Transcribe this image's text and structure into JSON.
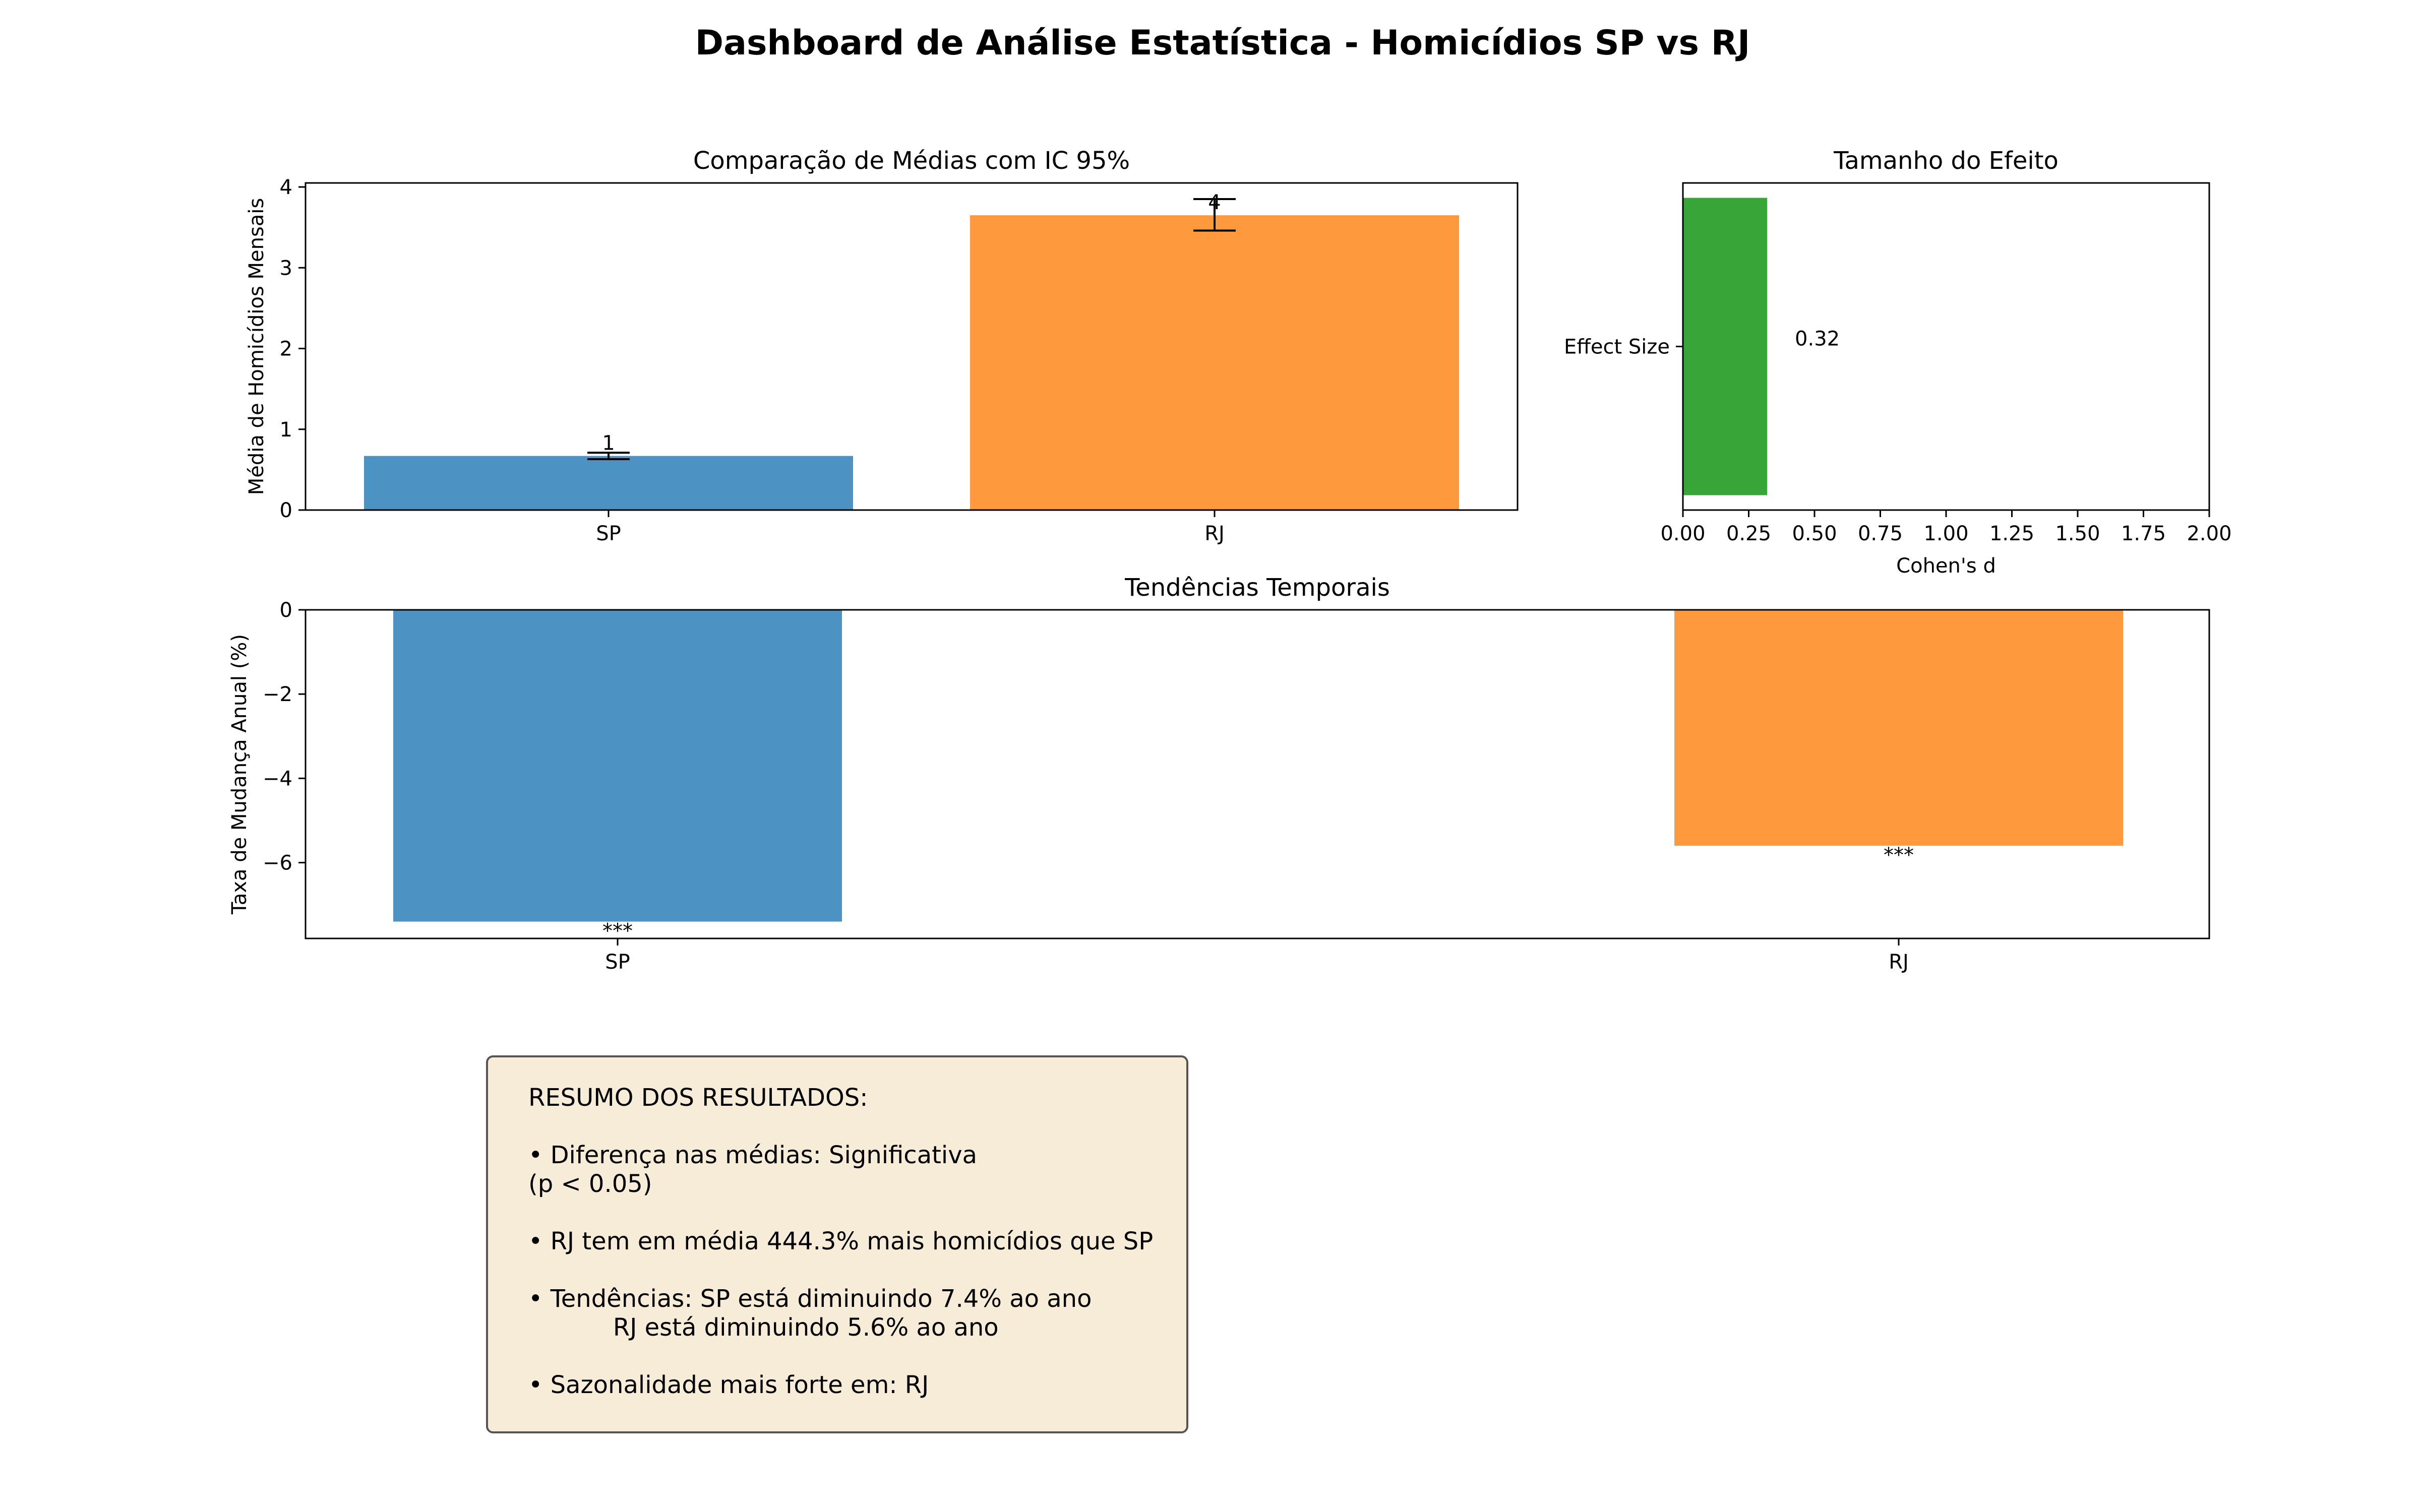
{
  "dashboard": {
    "title": "Dashboard de Análise Estatística - Homicídios SP vs RJ"
  },
  "chart_data": [
    {
      "type": "bar",
      "title": "Comparação de Médias com IC 95%",
      "xlabel": "",
      "ylabel": "Média de Homicídios Mensais",
      "categories": [
        "SP",
        "RJ"
      ],
      "values": [
        0.67,
        3.65
      ],
      "ci_low": [
        0.63,
        3.46
      ],
      "ci_high": [
        0.71,
        3.85
      ],
      "data_labels": [
        "1",
        "4"
      ],
      "colors": [
        "#1f77b4",
        "#ff7f0e"
      ],
      "ylim": [
        0,
        4.05
      ],
      "yticks": [
        0,
        1,
        2,
        3,
        4
      ],
      "grid": false
    },
    {
      "type": "bar",
      "orientation": "horizontal",
      "title": "Tamanho do Efeito",
      "xlabel": "Cohen's d",
      "ylabel": "",
      "categories": [
        "Effect Size"
      ],
      "values": [
        0.32
      ],
      "data_labels": [
        "0.32"
      ],
      "colors": [
        "#2ca02c"
      ],
      "xlim": [
        0,
        2.0
      ],
      "xticks": [
        "0.00",
        "0.25",
        "0.50",
        "0.75",
        "1.00",
        "1.25",
        "1.50",
        "1.75",
        "2.00"
      ],
      "grid": false
    },
    {
      "type": "bar",
      "title": "Tendências Temporais",
      "xlabel": "",
      "ylabel": "Taxa de Mudança Anual (%)",
      "categories": [
        "SP",
        "RJ"
      ],
      "values": [
        -7.4,
        -5.6
      ],
      "data_labels": [
        "***",
        "***"
      ],
      "colors": [
        "#1f77b4",
        "#ff7f0e"
      ],
      "ylim": [
        -7.8,
        0
      ],
      "yticks": [
        "−6",
        "−4",
        "−2",
        "0"
      ],
      "ytick_values": [
        -6,
        -4,
        -2,
        0
      ],
      "grid": false
    }
  ],
  "summary": {
    "lines": [
      "RESUMO DOS RESULTADOS:",
      "",
      "• Diferença nas médias: Significativa",
      "(p < 0.05)",
      "",
      "• RJ tem em média 444.3% mais homicídios que SP",
      "",
      "• Tendências: SP está diminuindo 7.4% ao ano",
      "           RJ está diminuindo 5.6% ao ano",
      "",
      "• Sazonalidade mais forte em: RJ"
    ]
  }
}
